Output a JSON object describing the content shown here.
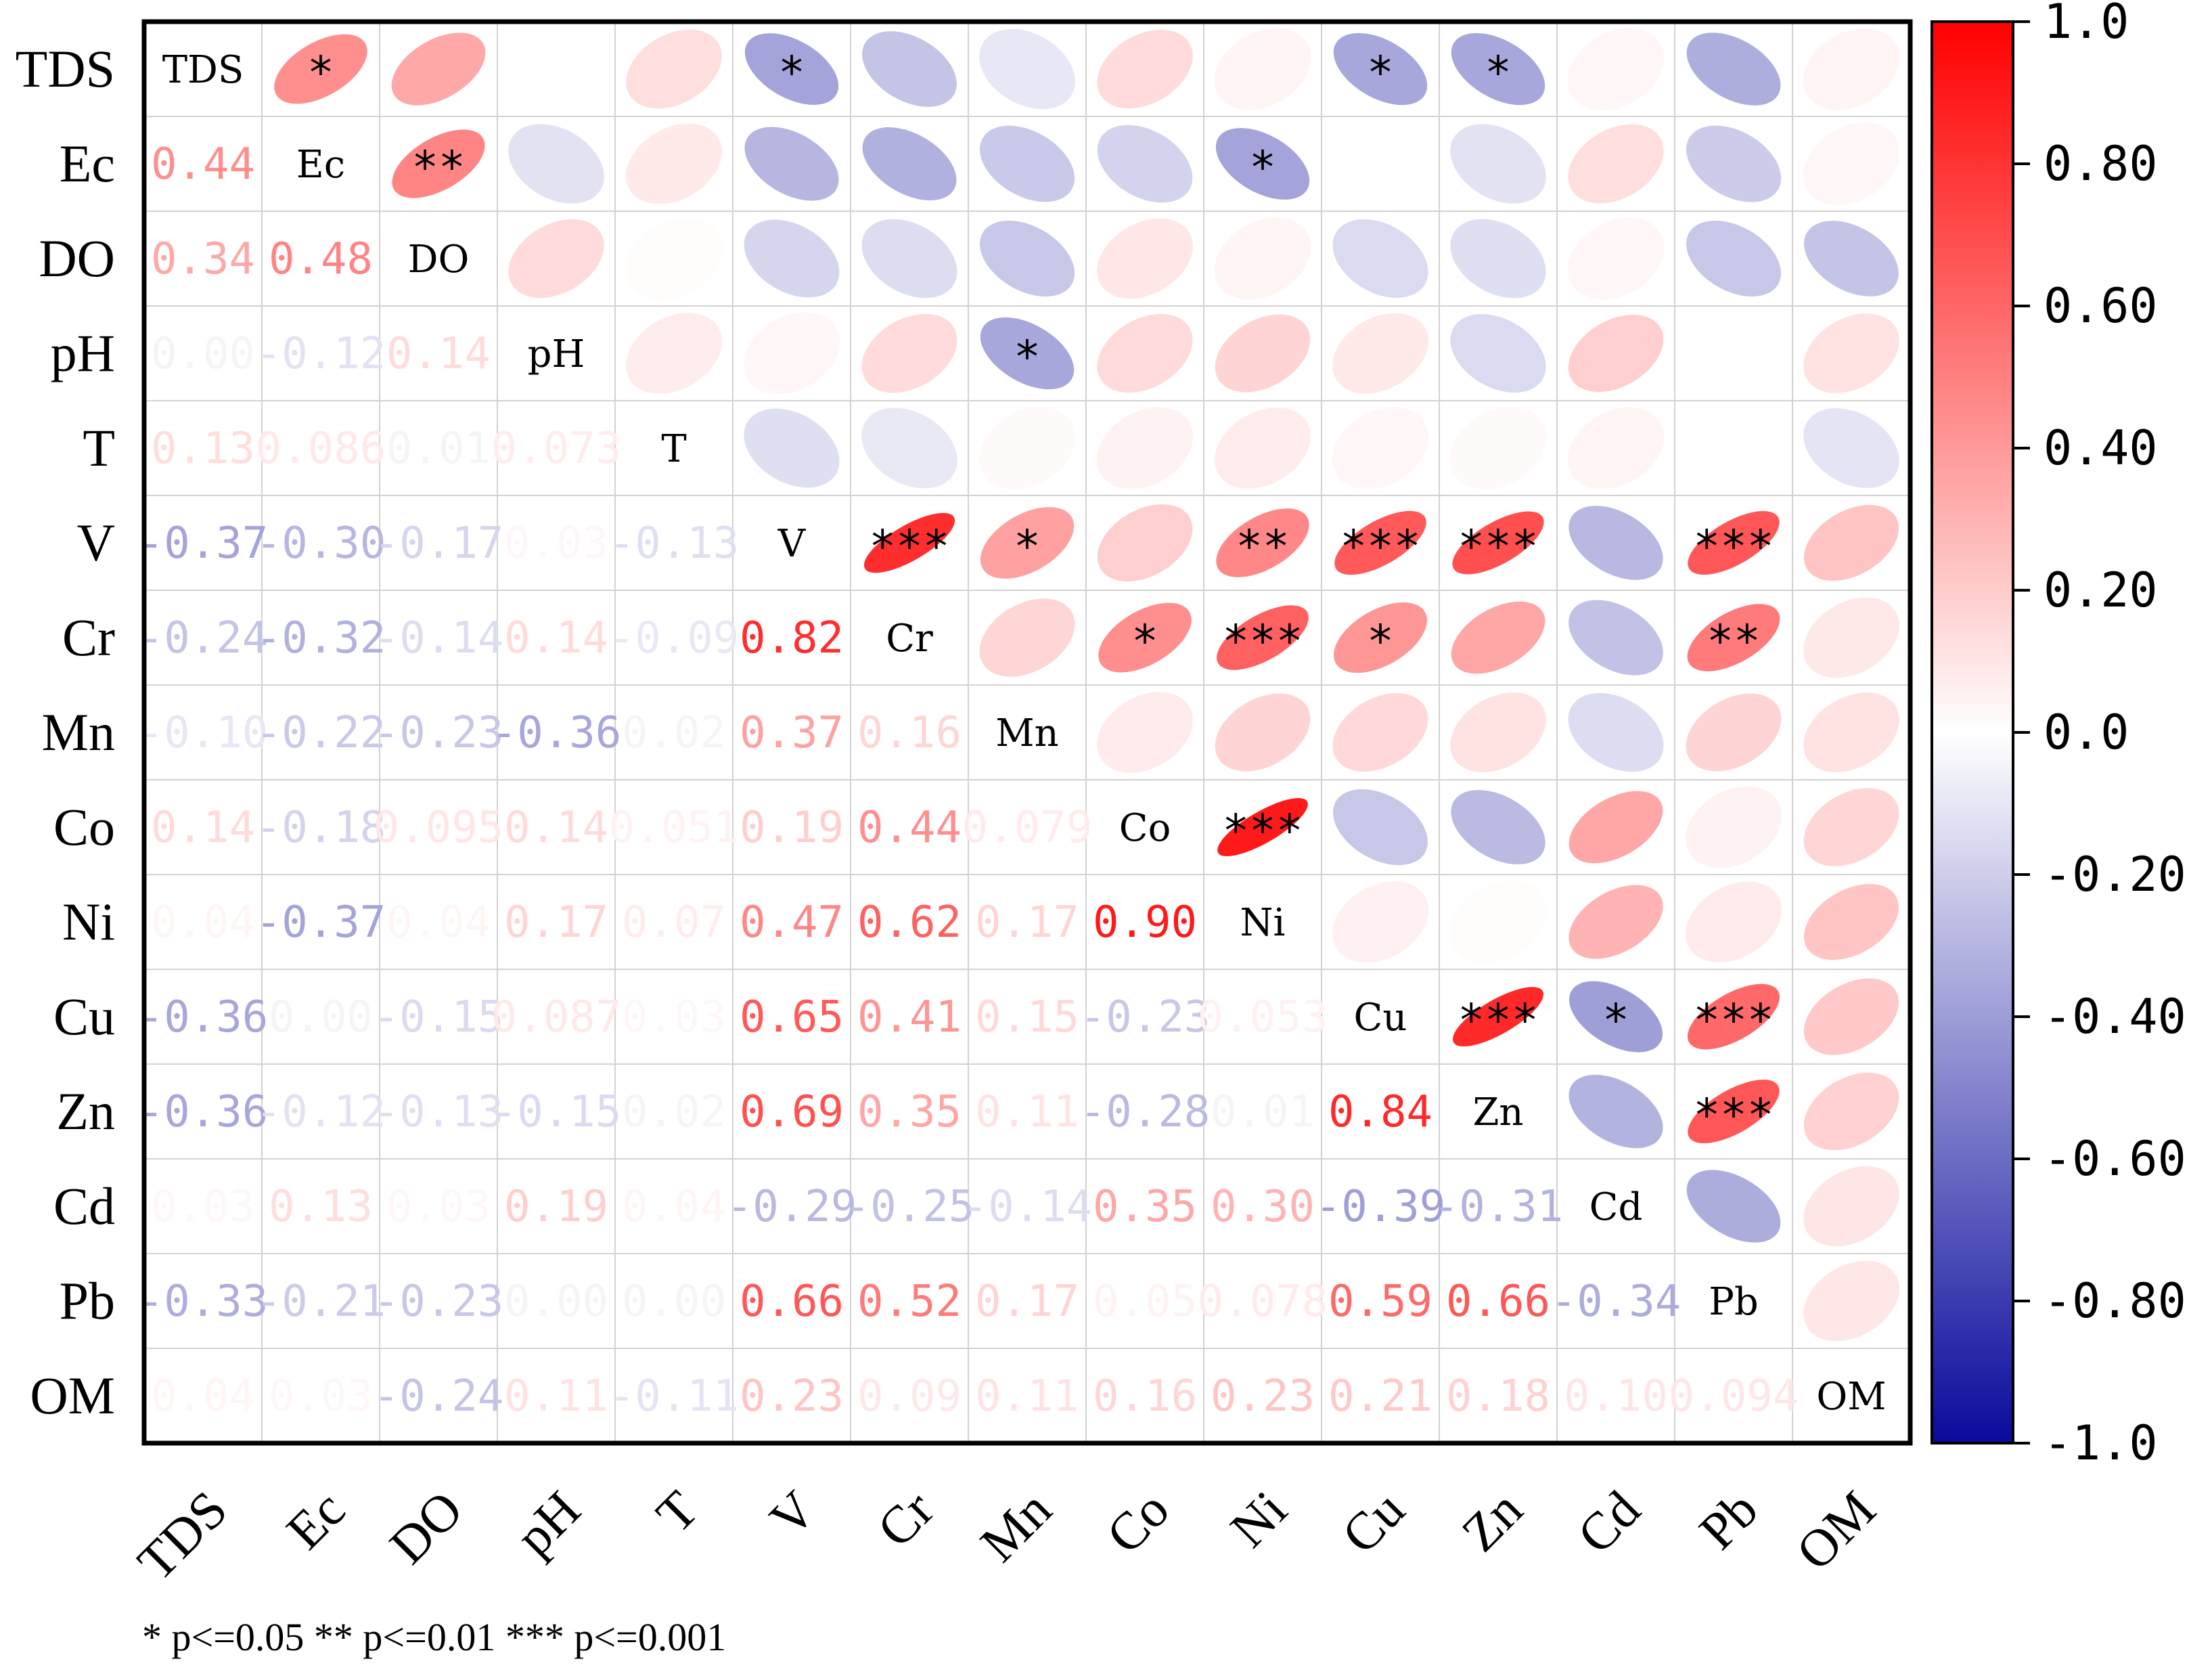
{
  "chart_data": {
    "type": "heatmap",
    "title": "",
    "variables": [
      "TDS",
      "Ec",
      "DO",
      "pH",
      "T",
      "V",
      "Cr",
      "Mn",
      "Co",
      "Ni",
      "Cu",
      "Zn",
      "Cd",
      "Pb",
      "OM"
    ],
    "lower_labels": [
      [],
      [
        "0.44"
      ],
      [
        "0.34",
        "0.48"
      ],
      [
        "0.00",
        "-0.12",
        "0.14"
      ],
      [
        "0.13",
        "0.086",
        "0.01",
        "0.073"
      ],
      [
        "-0.37",
        "-0.30",
        "-0.17",
        "0.03",
        "-0.13"
      ],
      [
        "-0.24",
        "-0.32",
        "-0.14",
        "0.14",
        "-0.09"
      ],
      [
        "-0.10",
        "-0.22",
        "-0.23",
        "-0.36",
        "0.02",
        "0.37",
        "0.16"
      ],
      [
        "0.14",
        "-0.18",
        "0.095",
        "0.14",
        "0.051",
        "0.19",
        "0.44",
        "0.079"
      ],
      [
        "0.04",
        "-0.37",
        "0.04",
        "0.17",
        "0.07",
        "0.47",
        "0.62",
        "0.17",
        "0.90"
      ],
      [
        "-0.36",
        "0.00",
        "-0.15",
        "0.087",
        "0.03",
        "0.65",
        "0.41",
        "0.15",
        "-0.23",
        "0.053"
      ],
      [
        "-0.36",
        "-0.12",
        "-0.13",
        "-0.15",
        "0.02",
        "0.69",
        "0.35",
        "0.11",
        "-0.28",
        "0.01",
        "0.84"
      ],
      [
        "0.03",
        "0.13",
        "0.03",
        "0.19",
        "0.04",
        "-0.29",
        "-0.25",
        "-0.14",
        "0.35",
        "0.30",
        "-0.39",
        "-0.31"
      ],
      [
        "-0.33",
        "-0.21",
        "-0.23",
        "0.00",
        "0.00",
        "0.66",
        "0.52",
        "0.17",
        "0.05",
        "0.078",
        "0.59",
        "0.66",
        "-0.34"
      ],
      [
        "0.04",
        "0.03",
        "-0.24",
        "0.11",
        "-0.11",
        "0.23",
        "0.09",
        "0.11",
        "0.16",
        "0.23",
        "0.21",
        "0.18",
        "0.10",
        "0.094"
      ]
    ],
    "lower_values_fix": {
      "6": [
        "-0.24",
        "-0.32",
        "-0.14",
        "0.14",
        "-0.09",
        "0.82"
      ]
    },
    "upper": [
      [
        null,
        "0.44|*",
        "0.34",
        "0.00",
        "0.13",
        "-0.37|*",
        "-0.24",
        "-0.10",
        "0.14",
        "0.04",
        "-0.36|*",
        "-0.36|*",
        "0.03",
        "-0.33",
        "0.04"
      ],
      [
        null,
        null,
        "0.48|**",
        "-0.12",
        "0.086",
        "-0.30",
        "-0.32",
        "-0.22",
        "-0.18",
        "-0.37|*",
        "0.00",
        "-0.12",
        "0.13",
        "-0.21",
        "0.03"
      ],
      [
        null,
        null,
        null,
        "0.14",
        "0.01",
        "-0.17",
        "-0.14",
        "-0.23",
        "0.095",
        "0.04",
        "-0.15",
        "-0.13",
        "0.03",
        "-0.23",
        "-0.24"
      ],
      [
        null,
        null,
        null,
        null,
        "0.073",
        "0.03",
        "0.14",
        "-0.36|*",
        "0.14",
        "0.17",
        "0.087",
        "-0.15",
        "0.19",
        "0.00",
        "0.11"
      ],
      [
        null,
        null,
        null,
        null,
        null,
        "-0.13",
        "-0.09",
        "0.02",
        "0.051",
        "0.07",
        "0.03",
        "0.02",
        "0.04",
        "0.00",
        "-0.11"
      ],
      [
        null,
        null,
        null,
        null,
        null,
        null,
        "0.82|***",
        "0.37|*",
        "0.19",
        "0.47|**",
        "0.65|***",
        "0.69|***",
        "-0.29",
        "0.66|***",
        "0.23"
      ],
      [
        null,
        null,
        null,
        null,
        null,
        null,
        null,
        "0.16",
        "0.44|*",
        "0.62|***",
        "0.41|*",
        "0.35",
        "-0.25",
        "0.52|**",
        "0.09"
      ],
      [
        null,
        null,
        null,
        null,
        null,
        null,
        null,
        null,
        "0.079",
        "0.17",
        "0.15",
        "0.11",
        "-0.14",
        "0.17",
        "0.11"
      ],
      [
        null,
        null,
        null,
        null,
        null,
        null,
        null,
        null,
        null,
        "0.90|***",
        "-0.23",
        "-0.28",
        "0.35",
        "0.05",
        "0.16"
      ],
      [
        null,
        null,
        null,
        null,
        null,
        null,
        null,
        null,
        null,
        null,
        "0.053",
        "0.01",
        "0.30",
        "0.078",
        "0.23"
      ],
      [
        null,
        null,
        null,
        null,
        null,
        null,
        null,
        null,
        null,
        null,
        null,
        "0.84|***",
        "-0.39|*",
        "0.59|***",
        "0.21"
      ],
      [
        null,
        null,
        null,
        null,
        null,
        null,
        null,
        null,
        null,
        null,
        null,
        null,
        "-0.31",
        "0.66|***",
        "0.18"
      ],
      [
        null,
        null,
        null,
        null,
        null,
        null,
        null,
        null,
        null,
        null,
        null,
        null,
        null,
        "-0.34",
        "0.10"
      ],
      [
        null,
        null,
        null,
        null,
        null,
        null,
        null,
        null,
        null,
        null,
        null,
        null,
        null,
        null,
        "0.094"
      ],
      [
        null,
        null,
        null,
        null,
        null,
        null,
        null,
        null,
        null,
        null,
        null,
        null,
        null,
        null,
        null
      ]
    ],
    "colorbar": {
      "range": [
        -1.0,
        1.0
      ],
      "ticks": [
        "1.0",
        "0.80",
        "0.60",
        "0.40",
        "0.20",
        "0.0",
        "-0.20",
        "-0.40",
        "-0.60",
        "-0.80",
        "-1.0"
      ],
      "colors": {
        "negative": "#0a0a9c",
        "zero": "#ffffff",
        "positive": "#ff0000"
      }
    },
    "significance_legend": "* p<=0.05  ** p<=0.01  *** p<=0.001"
  }
}
